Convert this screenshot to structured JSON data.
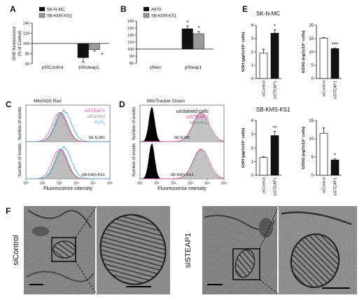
{
  "panels": {
    "A": {
      "label": "A",
      "ylabel": "DHE fluorescence (% of Control)",
      "ylabel_line1": "DHE fluorescence",
      "ylabel_line2": "(% of Control)",
      "ylim": [
        60,
        140
      ],
      "yticks": [
        60,
        80,
        100,
        120,
        140
      ],
      "groups": [
        "pSIControl",
        "pSIsteap1"
      ],
      "series": [
        {
          "name": "SK-N-MC",
          "color": "#111111",
          "values": [
            100,
            72
          ],
          "err": [
            0,
            9
          ]
        },
        {
          "name": "SB-KMS-KS1",
          "color": "#9a9a9a",
          "values": [
            100,
            88
          ],
          "err": [
            0,
            3
          ]
        }
      ],
      "sig": [
        "",
        "*"
      ]
    },
    "B": {
      "label": "B",
      "ylim": [
        80,
        140
      ],
      "yticks": [
        80,
        90,
        100,
        110,
        120,
        130,
        140
      ],
      "groups": [
        "pNeo",
        "pSteap1"
      ],
      "series": [
        {
          "name": "A673",
          "color": "#111111",
          "values": [
            100,
            129
          ],
          "err": [
            0,
            4
          ]
        },
        {
          "name": "SB-KMS-KS1",
          "color": "#9a9a9a",
          "values": [
            100,
            122
          ],
          "err": [
            0,
            3
          ]
        }
      ],
      "sig": [
        "",
        "*"
      ]
    },
    "C": {
      "label": "C",
      "title": "MitoSOX Red",
      "legend": [
        "siSTEAP1",
        "siControl",
        "H2O2"
      ],
      "sub_labels": [
        "SK-N-MC",
        "SB-KMS-KS1"
      ],
      "xlabel": "Fluorescence intensity",
      "ylabel": "Number of events",
      "xticks": [
        "10⁰",
        "10¹",
        "10²",
        "10³",
        "10⁴",
        "10⁵"
      ]
    },
    "D": {
      "label": "D",
      "title": "MitoTracker Green",
      "legend": [
        "unstained cells",
        "siSTEAP1",
        "siControl"
      ],
      "sub_labels": [
        "SK-N-MC",
        "SB-KMS-KS1"
      ],
      "xlabel": "Fluorescence intensity",
      "ylabel": "Number of events",
      "xticks": [
        "10⁰",
        "10¹",
        "10²",
        "10³",
        "10⁴",
        "10⁵"
      ]
    },
    "E": {
      "label": "E",
      "row_titles": [
        "SK-N-MC",
        "SB-KMS-KS1"
      ]
    },
    "F": {
      "label": "F",
      "left_label": "siControl",
      "right_label": "siSTEAP1"
    }
  },
  "chart_data": [
    {
      "panel": "A",
      "type": "bar",
      "categories": [
        "pSIControl",
        "pSIsteap1"
      ],
      "series": [
        {
          "name": "SK-N-MC",
          "values": [
            100,
            72
          ]
        },
        {
          "name": "SB-KMS-KS1",
          "values": [
            100,
            88
          ]
        }
      ],
      "ylabel": "DHE fluorescence (% of Control)",
      "ylim": [
        60,
        140
      ],
      "baseline": 100
    },
    {
      "panel": "B",
      "type": "bar",
      "categories": [
        "pNeo",
        "pSteap1"
      ],
      "series": [
        {
          "name": "A673",
          "values": [
            100,
            129
          ]
        },
        {
          "name": "SB-KMS-KS1",
          "values": [
            100,
            122
          ]
        }
      ],
      "ylim": [
        80,
        140
      ],
      "baseline": 100
    },
    {
      "panel": "E1",
      "type": "bar",
      "row": "SK-N-MC",
      "categories": [
        "siControl",
        "siSTEAP1"
      ],
      "values": [
        1.9,
        3.4
      ],
      "err": [
        0.3,
        0.25
      ],
      "sig": [
        "",
        "*"
      ],
      "ylabel": "GSH (μg/1x10⁶ cells)",
      "ylim": [
        0,
        4
      ],
      "yticks": [
        0,
        1,
        2,
        3,
        4
      ]
    },
    {
      "panel": "E2",
      "type": "bar",
      "row": "SK-N-MC",
      "categories": [
        "siControl",
        "siSTEAP1"
      ],
      "values": [
        15.2,
        11.2
      ],
      "err": [
        0.2,
        0.2
      ],
      "sig": [
        "",
        "***"
      ],
      "ylabel": "GSSG (ng/1x10⁶ cells)",
      "ylim": [
        0,
        20
      ],
      "yticks": [
        0,
        5,
        10,
        15,
        20
      ]
    },
    {
      "panel": "E3",
      "type": "bar",
      "row": "SB-KMS-KS1",
      "categories": [
        "siControl",
        "siSTEAP1"
      ],
      "values": [
        1.3,
        2.9
      ],
      "err": [
        0.05,
        0.3
      ],
      "sig": [
        "",
        "**"
      ],
      "ylabel": "GSH (μg/1x10⁶ cells)",
      "ylim": [
        0,
        4
      ],
      "yticks": [
        0,
        1,
        2,
        3,
        4
      ]
    },
    {
      "panel": "E4",
      "type": "bar",
      "row": "SB-KMS-KS1",
      "categories": [
        "siControl",
        "siSTEAP1"
      ],
      "values": [
        11.5,
        4.2
      ],
      "err": [
        1.5,
        0.3
      ],
      "sig": [
        "",
        "*"
      ],
      "ylabel": "GSSG (ng/1x10⁶ cells)",
      "ylim": [
        0,
        15
      ],
      "yticks": [
        0,
        5,
        10,
        15
      ]
    }
  ],
  "colors": {
    "black": "#111111",
    "grey": "#9a9a9a",
    "sisteap1": "#d14fa0",
    "sicontrol": "#9a9a9a",
    "h2o2": "#3aa0d8",
    "em_bg": "#6e6e6e"
  },
  "icons": {
    "scale_bar": "scale-bar",
    "zoom_box": "zoom-box"
  }
}
